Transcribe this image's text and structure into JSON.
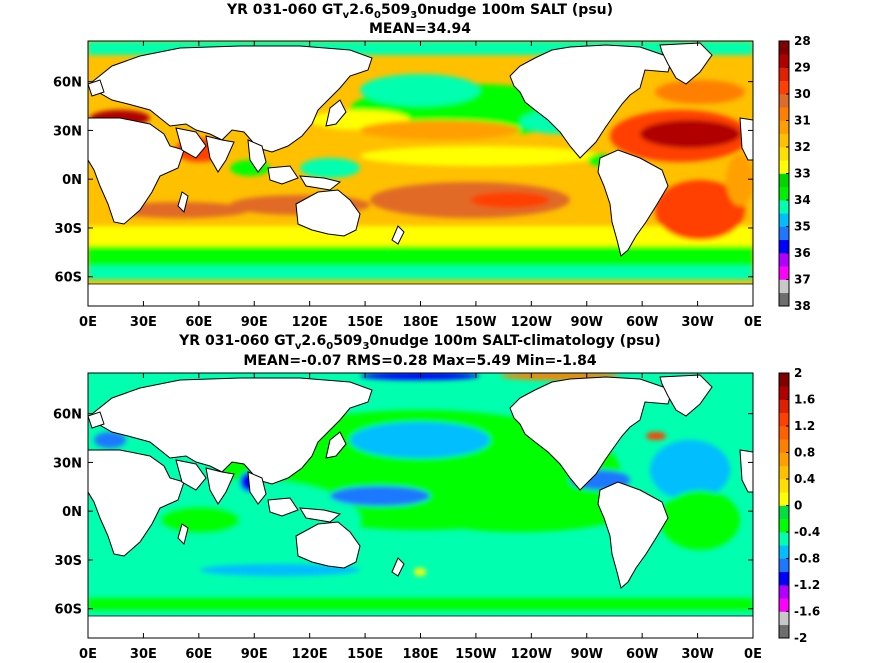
{
  "chart_data": [
    {
      "type": "heatmap",
      "title_parts": [
        "YR 031-060 GT",
        "v",
        "2.6",
        "0",
        "509",
        "3",
        "0nudge 100m SALT (psu)"
      ],
      "subtitle": "MEAN=34.94",
      "x_ticks": [
        "0E",
        "30E",
        "60E",
        "90E",
        "120E",
        "150E",
        "180E",
        "150W",
        "120W",
        "90W",
        "60W",
        "30W",
        "0E"
      ],
      "y_ticks": [
        "60N",
        "30N",
        "0N",
        "30S",
        "60S"
      ],
      "colorbar": {
        "ticks": [
          "28",
          "29",
          "30",
          "31",
          "32",
          "33",
          "34",
          "35",
          "36",
          "37",
          "38"
        ],
        "colors": [
          "#6e6e6e",
          "#c8c8c8",
          "#ff00ff",
          "#b000ff",
          "#0000ff",
          "#1e78ff",
          "#00beff",
          "#00ffaf",
          "#00f000",
          "#00d800",
          "#ffff00",
          "#ffe000",
          "#ffc000",
          "#ffa000",
          "#ff8000",
          "#e06a28",
          "#ff4000",
          "#e02000",
          "#b00000",
          "#800000"
        ]
      },
      "mean": 34.94
    },
    {
      "type": "heatmap",
      "title_parts": [
        "YR 031-060 GT",
        "v",
        "2.6",
        "0",
        "509",
        "3",
        "0nudge 100m SALT-climatology (psu)"
      ],
      "subtitle": "MEAN=-0.07   RMS=0.28   Max=5.49   Min=-1.84",
      "x_ticks": [
        "0E",
        "30E",
        "60E",
        "90E",
        "120E",
        "150E",
        "180E",
        "150W",
        "120W",
        "90W",
        "60W",
        "30W",
        "0E"
      ],
      "y_ticks": [
        "60N",
        "30N",
        "0N",
        "30S",
        "60S"
      ],
      "colorbar": {
        "ticks": [
          "2",
          "1.6",
          "1.2",
          "0.8",
          "0.4",
          "0",
          "-0.4",
          "-0.8",
          "-1.2",
          "-1.6",
          "-2"
        ],
        "colors": [
          "#6e6e6e",
          "#c8c8c8",
          "#ff00ff",
          "#b000ff",
          "#0000ff",
          "#1e78ff",
          "#00beff",
          "#00ffaf",
          "#00ff00",
          "#00e040",
          "#ffff00",
          "#ffe000",
          "#ffc000",
          "#ffa000",
          "#ff8000",
          "#ff6000",
          "#ff4000",
          "#e02000",
          "#b00000",
          "#800000"
        ]
      },
      "mean": -0.07,
      "rms": 0.28,
      "max": 5.49,
      "min": -1.84
    }
  ]
}
